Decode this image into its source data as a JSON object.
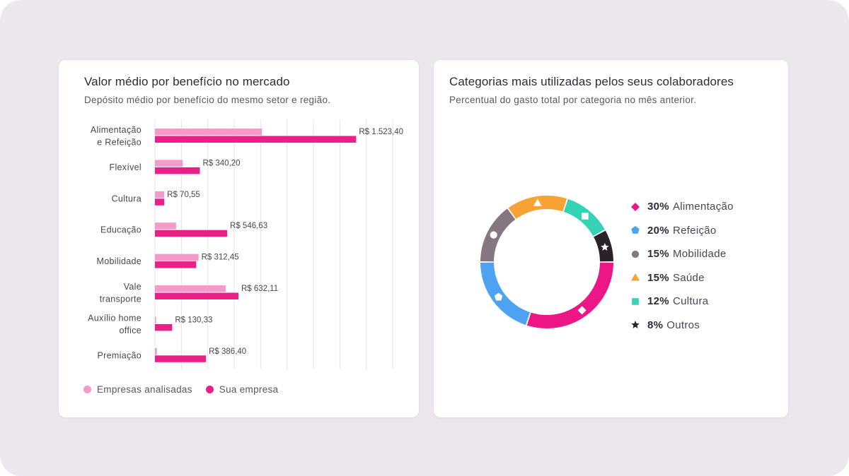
{
  "left_card": {
    "title": "Valor médio por benefício no mercado",
    "subtitle": "Depósito médio por benefício do mesmo setor e região.",
    "legend": [
      {
        "label": "Empresas analisadas",
        "color": "#f59bc9"
      },
      {
        "label": "Sua empresa",
        "color": "#ec1f86"
      }
    ]
  },
  "right_card": {
    "title": "Categorias mais utilizadas pelos seus colaboradores",
    "subtitle": "Percentual do gasto total por categoria no mês anterior."
  },
  "chart_data": [
    {
      "type": "bar",
      "orientation": "horizontal",
      "categories": [
        [
          "Alimentação",
          "e Refeição"
        ],
        [
          "Flexível"
        ],
        [
          "Cultura"
        ],
        [
          "Educação"
        ],
        [
          "Mobilidade"
        ],
        [
          "Vale",
          "transporte"
        ],
        [
          "Auxílio home",
          "office"
        ],
        [
          "Premiação"
        ]
      ],
      "series": [
        {
          "name": "Empresas analisadas",
          "color": "#f59bc9",
          "values": [
            810,
            210,
            70,
            160,
            330,
            535,
            8,
            15
          ]
        },
        {
          "name": "Sua empresa",
          "color": "#ec1f86",
          "values": [
            1523.4,
            340.2,
            70.55,
            546.63,
            312.45,
            632.11,
            130.33,
            386.4
          ]
        }
      ],
      "data_labels": [
        "R$ 1.523,40",
        "R$ 340,20",
        "R$ 70,55",
        "R$ 546,63",
        "R$ 312,45",
        "R$ 632,11",
        "R$ 130,33",
        "R$ 386,40"
      ],
      "xlim": [
        0,
        1800
      ],
      "grid": true,
      "legend_position": "bottom-left"
    },
    {
      "type": "pie",
      "style": "donut",
      "slices": [
        {
          "label": "Alimentação",
          "percent": 30,
          "pct_text": "30%",
          "color": "#ec1686",
          "marker": "diamond"
        },
        {
          "label": "Refeição",
          "percent": 20,
          "pct_text": "20%",
          "color": "#4da3f1",
          "marker": "pentagon"
        },
        {
          "label": "Mobilidade",
          "percent": 15,
          "pct_text": "15%",
          "color": "#85777f",
          "marker": "circle"
        },
        {
          "label": "Saúde",
          "percent": 15,
          "pct_text": "15%",
          "color": "#f7a234",
          "marker": "triangle"
        },
        {
          "label": "Cultura",
          "percent": 12,
          "pct_text": "12%",
          "color": "#35d3b6",
          "marker": "square"
        },
        {
          "label": "Outros",
          "percent": 8,
          "pct_text": "8%",
          "color": "#2b2228",
          "marker": "star"
        }
      ],
      "legend_position": "right"
    }
  ]
}
